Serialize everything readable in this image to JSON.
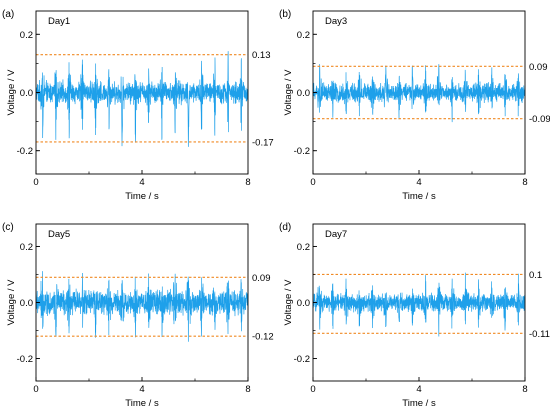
{
  "colors": {
    "signal": "#1ea0ea",
    "threshold": "#f08a24",
    "axis": "#000000"
  },
  "chart_data": [
    {
      "type": "line",
      "panel_label": "(a)",
      "inset_label": "Day1",
      "xlabel": "Time / s",
      "ylabel": "Voltage / V",
      "xlim": [
        0,
        8
      ],
      "ylim": [
        -0.28,
        0.28
      ],
      "xticks": [
        "0",
        "4",
        "8"
      ],
      "yticks": [
        "-0.2",
        "0.0",
        "0.2"
      ],
      "yticks_values": [
        -0.2,
        0.0,
        0.2
      ],
      "xticks_values": [
        0,
        4,
        8
      ],
      "upper": 0.13,
      "lower": -0.17,
      "upper_label": "0.13",
      "lower_label": "-0.17",
      "spike_period_s": 0.5,
      "peak_amplitude": [
        0.12,
        -0.2
      ],
      "noise_amplitude": 0.03
    },
    {
      "type": "line",
      "panel_label": "(b)",
      "inset_label": "Day3",
      "xlabel": "Time / s",
      "ylabel": "Voltage / V",
      "xlim": [
        0,
        8
      ],
      "ylim": [
        -0.28,
        0.28
      ],
      "xticks": [
        "0",
        "4",
        "8"
      ],
      "yticks": [
        "-0.2",
        "0.0",
        "0.2"
      ],
      "yticks_values": [
        -0.2,
        0.0,
        0.2
      ],
      "xticks_values": [
        0,
        4,
        8
      ],
      "upper": 0.09,
      "lower": -0.09,
      "upper_label": "0.09",
      "lower_label": "-0.09",
      "spike_period_s": 0.5,
      "peak_amplitude": [
        0.09,
        -0.1
      ],
      "noise_amplitude": 0.025
    },
    {
      "type": "line",
      "panel_label": "(c)",
      "inset_label": "Day5",
      "xlabel": "Time / s",
      "ylabel": "Voltage / V",
      "xlim": [
        0,
        8
      ],
      "ylim": [
        -0.28,
        0.28
      ],
      "xticks": [
        "0",
        "4",
        "8"
      ],
      "yticks": [
        "-0.2",
        "0.0",
        "0.2"
      ],
      "yticks_values": [
        -0.2,
        0.0,
        0.2
      ],
      "xticks_values": [
        0,
        4,
        8
      ],
      "upper": 0.09,
      "lower": -0.12,
      "upper_label": "0.09",
      "lower_label": "-0.12",
      "spike_period_s": 0.5,
      "peak_amplitude": [
        0.1,
        -0.12
      ],
      "noise_amplitude": 0.035
    },
    {
      "type": "line",
      "panel_label": "(d)",
      "inset_label": "Day7",
      "xlabel": "Time / s",
      "ylabel": "Voltage / V",
      "xlim": [
        0,
        8
      ],
      "ylim": [
        -0.28,
        0.28
      ],
      "xticks": [
        "0",
        "4",
        "8"
      ],
      "yticks": [
        "-0.2",
        "0.0",
        "0.2"
      ],
      "yticks_values": [
        -0.2,
        0.0,
        0.2
      ],
      "xticks_values": [
        0,
        4,
        8
      ],
      "upper": 0.1,
      "lower": -0.11,
      "upper_label": "0.1",
      "lower_label": "-0.11",
      "spike_period_s": 0.5,
      "peak_amplitude": [
        0.1,
        -0.11
      ],
      "noise_amplitude": 0.025
    }
  ]
}
